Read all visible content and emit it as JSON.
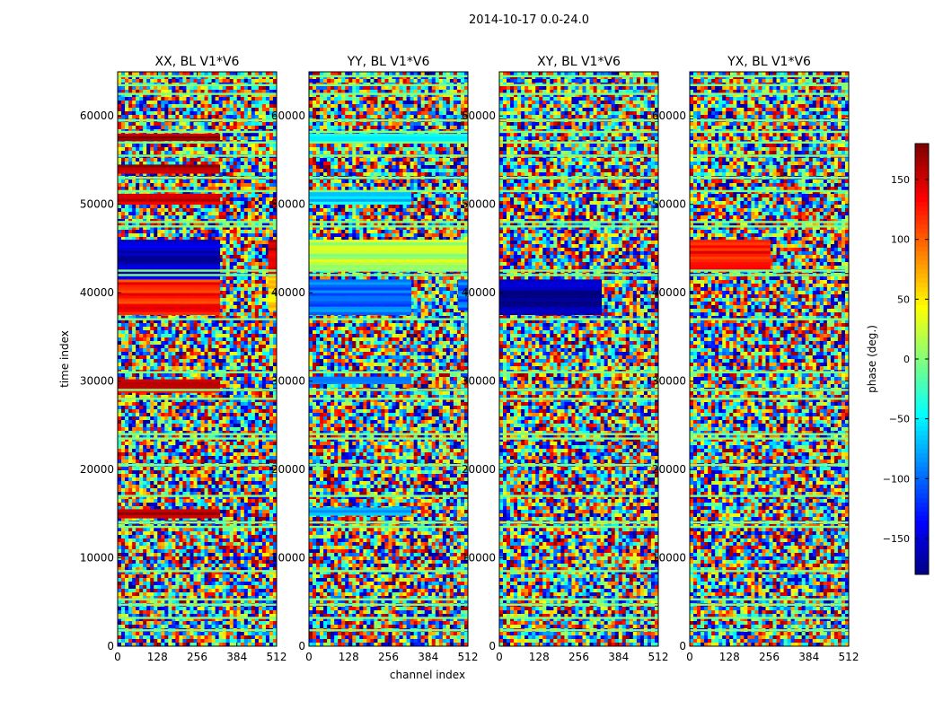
{
  "chart_data": {
    "type": "heatmap",
    "suptitle": "2014-10-17 0.0-24.0",
    "xlabel": "channel index",
    "ylabel": "time index",
    "x_range": [
      0,
      512
    ],
    "y_range": [
      0,
      65000
    ],
    "x_ticks": [
      0,
      128,
      256,
      384,
      512
    ],
    "x_tick_labels": [
      "0",
      "128",
      "256",
      "384",
      "512"
    ],
    "y_ticks": [
      0,
      10000,
      20000,
      30000,
      40000,
      50000,
      60000
    ],
    "y_tick_labels": [
      "0",
      "10000",
      "20000",
      "30000",
      "40000",
      "50000",
      "60000"
    ],
    "colormap": "jet",
    "colorbar": {
      "label": "phase (deg.)",
      "range": [
        -180,
        180
      ],
      "ticks": [
        150,
        100,
        50,
        0,
        -50,
        -100,
        -150
      ],
      "tick_labels": [
        "150",
        "100",
        "50",
        "0",
        "−50",
        "−100",
        "−150"
      ]
    },
    "panels": [
      {
        "title": "XX, BL V1*V6",
        "coherent_bands": [
          {
            "t0": 41500,
            "t1": 46000,
            "c0": 0,
            "c1": 330,
            "phase": -155
          },
          {
            "t0": 37500,
            "t1": 41500,
            "c0": 0,
            "c1": 330,
            "phase": 125
          },
          {
            "t0": 50000,
            "t1": 51200,
            "c0": 0,
            "c1": 330,
            "phase": 150
          },
          {
            "t0": 53500,
            "t1": 54500,
            "c0": 0,
            "c1": 330,
            "phase": 160
          },
          {
            "t0": 57200,
            "t1": 58000,
            "c0": 0,
            "c1": 330,
            "phase": 170
          },
          {
            "t0": 28700,
            "t1": 30200,
            "c0": 0,
            "c1": 330,
            "phase": 140
          },
          {
            "t0": 14500,
            "t1": 15500,
            "c0": 0,
            "c1": 330,
            "phase": 160
          },
          {
            "t0": 38000,
            "t1": 42000,
            "c0": 485,
            "c1": 512,
            "phase": 60
          },
          {
            "t0": 42000,
            "t1": 46000,
            "c0": 485,
            "c1": 512,
            "phase": 150
          }
        ]
      },
      {
        "title": "YY, BL V1*V6",
        "coherent_bands": [
          {
            "t0": 42500,
            "t1": 46000,
            "c0": 0,
            "c1": 512,
            "phase": 15
          },
          {
            "t0": 37500,
            "t1": 41500,
            "c0": 0,
            "c1": 330,
            "phase": -95
          },
          {
            "t0": 29700,
            "t1": 30500,
            "c0": 0,
            "c1": 330,
            "phase": -90
          },
          {
            "t0": 50000,
            "t1": 51500,
            "c0": 0,
            "c1": 330,
            "phase": -60
          },
          {
            "t0": 57000,
            "t1": 58000,
            "c0": 0,
            "c1": 512,
            "phase": -40
          },
          {
            "t0": 14800,
            "t1": 15700,
            "c0": 0,
            "c1": 330,
            "phase": -70
          },
          {
            "t0": 38000,
            "t1": 41500,
            "c0": 480,
            "c1": 512,
            "phase": -100
          }
        ]
      },
      {
        "title": "XY, BL V1*V6",
        "coherent_bands": [
          {
            "t0": 37500,
            "t1": 41500,
            "c0": 0,
            "c1": 330,
            "phase": -170
          }
        ]
      },
      {
        "title": "YX, BL V1*V6",
        "coherent_bands": [
          {
            "t0": 42500,
            "t1": 46000,
            "c0": 0,
            "c1": 260,
            "phase": 130
          }
        ]
      }
    ],
    "flagged_rows_time": [
      1800,
      3200,
      4700,
      5300,
      8500,
      13500,
      14000,
      17000,
      20500,
      23500,
      24000,
      28000,
      29000,
      31000,
      37000,
      42000,
      42500,
      47500,
      48000,
      51500,
      53000,
      55500,
      57000,
      58200,
      59500,
      62500,
      63500,
      64500
    ]
  }
}
